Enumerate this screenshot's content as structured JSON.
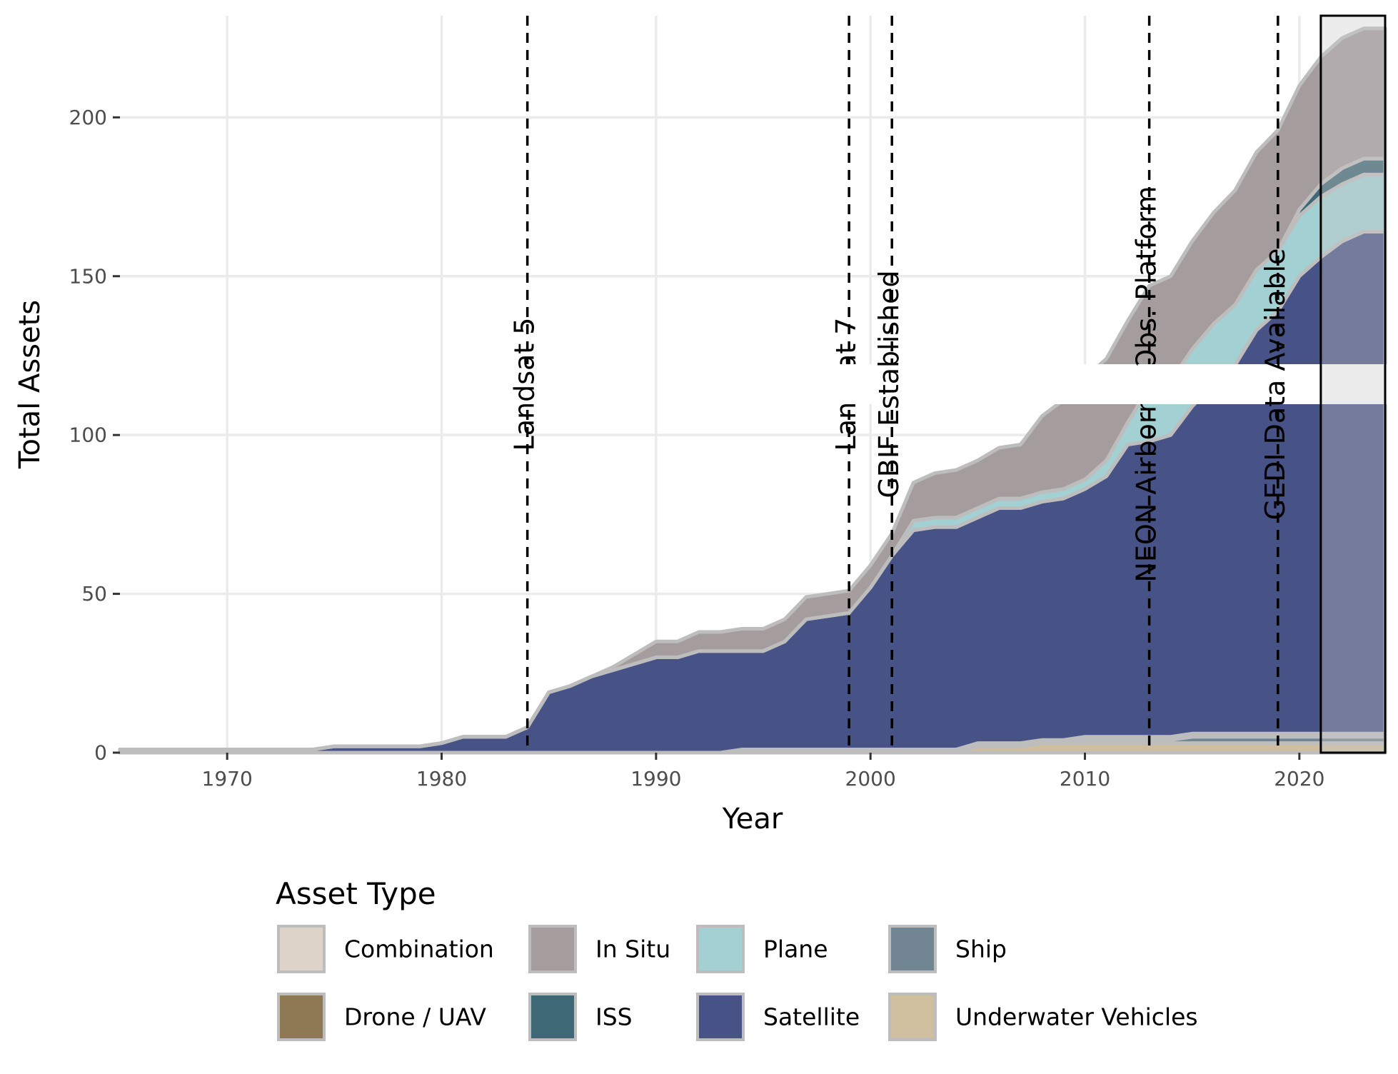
{
  "chart_data": {
    "type": "area",
    "stacked": true,
    "xlabel": "Year",
    "ylabel": "Total Assets",
    "xlim": [
      1965,
      2024
    ],
    "ylim": [
      0,
      232
    ],
    "x_ticks": [
      1970,
      1980,
      1990,
      2000,
      2010,
      2020
    ],
    "y_ticks": [
      0,
      50,
      100,
      150,
      200
    ],
    "grid": true,
    "legend": {
      "title": "Asset Type",
      "placement": "bottom",
      "entries": [
        "Combination",
        "In Situ",
        "Plane",
        "Ship",
        "Drone / UAV",
        "ISS",
        "Satellite",
        "Underwater Vehicles"
      ]
    },
    "stack_order_bottom_to_top": [
      "Underwater Vehicles",
      "Ship",
      "Combination",
      "Satellite",
      "Plane",
      "ISS",
      "Drone / UAV",
      "In Situ"
    ],
    "x": [
      1965,
      1966,
      1967,
      1968,
      1969,
      1970,
      1971,
      1972,
      1973,
      1974,
      1975,
      1976,
      1977,
      1978,
      1979,
      1980,
      1981,
      1982,
      1983,
      1984,
      1985,
      1986,
      1987,
      1988,
      1989,
      1990,
      1991,
      1992,
      1993,
      1994,
      1995,
      1996,
      1997,
      1998,
      1999,
      2000,
      2001,
      2002,
      2003,
      2004,
      2005,
      2006,
      2007,
      2008,
      2009,
      2010,
      2011,
      2012,
      2013,
      2014,
      2015,
      2016,
      2017,
      2018,
      2019,
      2020,
      2021,
      2022,
      2023,
      2024
    ],
    "series": [
      {
        "name": "Underwater Vehicles",
        "color": "#cfbf9f",
        "values": [
          0,
          0,
          0,
          0,
          0,
          0,
          0,
          0,
          0,
          0,
          0,
          0,
          0,
          0,
          0,
          0,
          0,
          0,
          0,
          0,
          0,
          0,
          0,
          0,
          0,
          0,
          0,
          0,
          0,
          0,
          0,
          0,
          0,
          0,
          0,
          0,
          0,
          0,
          0,
          0,
          2,
          2,
          2,
          3,
          3,
          3,
          3,
          3,
          3,
          3,
          3,
          3,
          3,
          3,
          3,
          3,
          3,
          3,
          3,
          3
        ]
      },
      {
        "name": "Ship",
        "color": "#728593",
        "values": [
          0,
          0,
          0,
          0,
          0,
          0,
          0,
          0,
          0,
          0,
          0,
          0,
          0,
          0,
          0,
          0,
          0,
          0,
          0,
          0,
          0,
          0,
          0,
          0,
          0,
          0,
          0,
          0,
          0,
          0,
          0,
          0,
          0,
          0,
          0,
          0,
          0,
          0,
          0,
          0,
          0,
          0,
          0,
          0,
          0,
          1,
          1,
          1,
          1,
          1,
          2,
          2,
          2,
          2,
          2,
          2,
          2,
          2,
          2,
          2
        ]
      },
      {
        "name": "Combination",
        "color": "#ddd3c8",
        "values": [
          1,
          1,
          1,
          1,
          1,
          0,
          0,
          0,
          0,
          0,
          0,
          0,
          0,
          0,
          0,
          0,
          0,
          0,
          0,
          0,
          0,
          0,
          0,
          0,
          0,
          0,
          0,
          0,
          0,
          1,
          1,
          1,
          1,
          1,
          1,
          1,
          1,
          1,
          1,
          1,
          1,
          1,
          1,
          1,
          1,
          1,
          1,
          1,
          1,
          1,
          1,
          1,
          1,
          1,
          1,
          1,
          1,
          1,
          1,
          1
        ]
      },
      {
        "name": "Satellite",
        "color": "#475286",
        "values": [
          0,
          0,
          0,
          0,
          0,
          1,
          1,
          1,
          1,
          1,
          2,
          2,
          2,
          2,
          2,
          3,
          5,
          5,
          5,
          8,
          19,
          21,
          24,
          26,
          28,
          30,
          30,
          32,
          32,
          31,
          31,
          34,
          41,
          42,
          43,
          51,
          61,
          69,
          70,
          70,
          71,
          74,
          74,
          75,
          76,
          78,
          82,
          92,
          93,
          95,
          103,
          110,
          116,
          127,
          133,
          144,
          150,
          155,
          158,
          158
        ]
      },
      {
        "name": "Plane",
        "color": "#a3d0d3",
        "values": [
          0,
          0,
          0,
          0,
          0,
          0,
          0,
          0,
          0,
          0,
          0,
          0,
          0,
          0,
          0,
          0,
          0,
          0,
          0,
          0,
          0,
          0,
          0,
          0,
          0,
          0,
          0,
          0,
          0,
          0,
          0,
          0,
          0,
          0,
          0,
          0,
          0,
          3,
          3,
          3,
          3,
          3,
          3,
          3,
          3,
          3,
          5,
          7,
          17,
          17,
          18,
          19,
          19,
          19,
          19,
          19,
          19,
          18,
          18,
          18
        ]
      },
      {
        "name": "ISS",
        "color": "#3e6875",
        "values": [
          0,
          0,
          0,
          0,
          0,
          0,
          0,
          0,
          0,
          0,
          0,
          0,
          0,
          0,
          0,
          0,
          0,
          0,
          0,
          0,
          0,
          0,
          0,
          0,
          0,
          0,
          0,
          0,
          0,
          0,
          0,
          0,
          0,
          0,
          0,
          0,
          0,
          0,
          0,
          0,
          0,
          0,
          0,
          0,
          0,
          0,
          0,
          0,
          0,
          0,
          0,
          0,
          0,
          0,
          0,
          2,
          4,
          5,
          5,
          5
        ]
      },
      {
        "name": "Drone / UAV",
        "color": "#8f7955",
        "values": [
          0,
          0,
          0,
          0,
          0,
          0,
          0,
          0,
          0,
          0,
          0,
          0,
          0,
          0,
          0,
          0,
          0,
          0,
          0,
          0,
          0,
          0,
          0,
          0,
          0,
          0,
          0,
          0,
          0,
          0,
          0,
          0,
          0,
          0,
          0,
          0,
          0,
          0,
          0,
          0,
          0,
          0,
          0,
          0,
          0,
          0,
          0,
          0,
          0,
          0,
          0,
          0,
          0,
          0,
          0,
          0,
          0,
          0,
          0,
          0
        ]
      },
      {
        "name": "In Situ",
        "color": "#a59c9e",
        "values": [
          0,
          0,
          0,
          0,
          0,
          0,
          0,
          0,
          0,
          0,
          0,
          0,
          0,
          0,
          0,
          0,
          0,
          0,
          0,
          0,
          0,
          0,
          0,
          1,
          3,
          5,
          5,
          6,
          6,
          7,
          7,
          7,
          7,
          7,
          7,
          7,
          7,
          12,
          14,
          15,
          15,
          16,
          17,
          24,
          28,
          32,
          32,
          32,
          32,
          33,
          34,
          35,
          36,
          37,
          38,
          39,
          40,
          41,
          41,
          41
        ]
      }
    ],
    "events": [
      {
        "year": 1984,
        "label": "Landsat 5"
      },
      {
        "year": 1999,
        "label": "Landsat 7"
      },
      {
        "year": 2001,
        "label": "GBIF Established"
      },
      {
        "year": 2013,
        "label": "NEON Airborne Obs. Platform"
      },
      {
        "year": 2019,
        "label": "GEDI Data Available"
      }
    ],
    "highlight_range": [
      2021,
      2024
    ]
  }
}
